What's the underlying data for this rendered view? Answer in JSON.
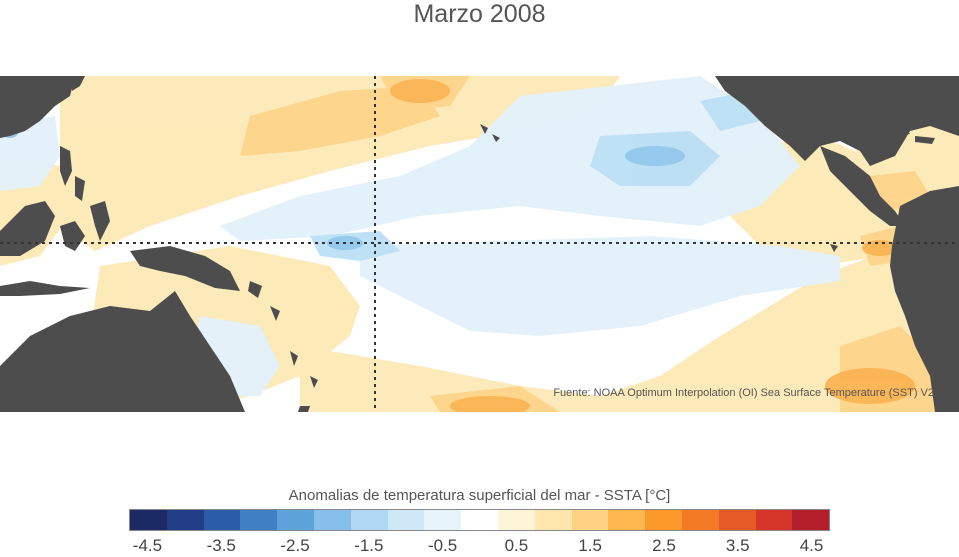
{
  "title": "Marzo 2008",
  "source_note": "Fuente: NOAA Optimum Interpolation (OI) Sea Surface Temperature (SST) V2",
  "colorbar": {
    "label": "Anomalias de temperatura superficial del mar - SSTA  [°C]",
    "colors": [
      "#1b2a63",
      "#213e86",
      "#2a5ca8",
      "#3f7fc4",
      "#5ea2da",
      "#86c0ea",
      "#aed8f3",
      "#cfe8f8",
      "#e6f3fb",
      "#ffffff",
      "#fff4d8",
      "#fee6ad",
      "#fdd182",
      "#fdb74e",
      "#fb9a2a",
      "#f47a26",
      "#e65a26",
      "#d6352a",
      "#b31f2a"
    ],
    "ticks": [
      "-4.5",
      "-3.5",
      "-2.5",
      "-1.5",
      "-0.5",
      "0.5",
      "1.5",
      "2.5",
      "3.5",
      "4.5"
    ]
  },
  "map": {
    "land_color": "#4d4d4d",
    "reference_lines": [
      "equator",
      "date-line"
    ]
  }
}
